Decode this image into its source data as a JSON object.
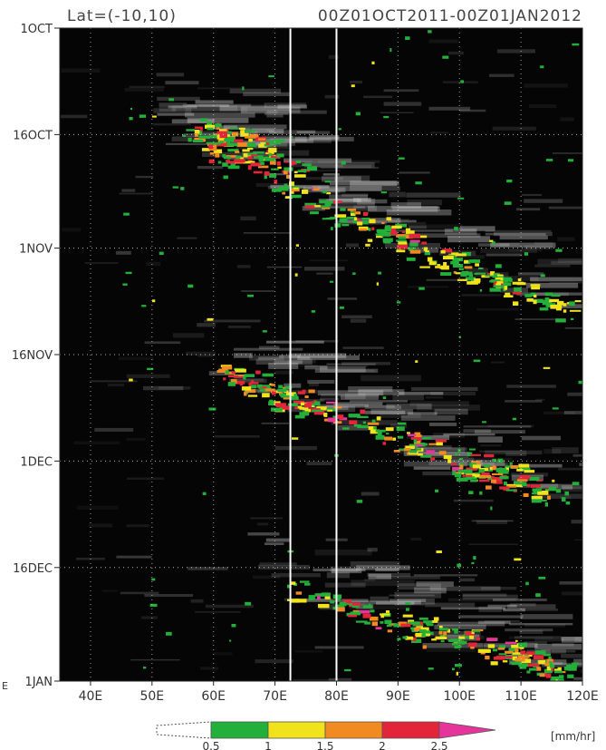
{
  "chart_data": {
    "type": "heatmap",
    "title_left": "Lat=(-10,10)",
    "title_right": "00Z01OCT2011-00Z01JAN2012",
    "x_axis": {
      "range": [
        35,
        120
      ],
      "ticks": [
        {
          "value": 40,
          "label": "40E"
        },
        {
          "value": 50,
          "label": "50E"
        },
        {
          "value": 60,
          "label": "60E"
        },
        {
          "value": 70,
          "label": "70E"
        },
        {
          "value": 80,
          "label": "80E"
        },
        {
          "value": 90,
          "label": "90E"
        },
        {
          "value": 100,
          "label": "100E"
        },
        {
          "value": 110,
          "label": "110E"
        },
        {
          "value": 120,
          "label": "120E"
        }
      ]
    },
    "y_axis": {
      "range_days_from_top": [
        0,
        92
      ],
      "ticks": [
        {
          "day": 0,
          "label": "1OCT"
        },
        {
          "day": 15,
          "label": "16OCT"
        },
        {
          "day": 31,
          "label": "1NOV"
        },
        {
          "day": 46,
          "label": "16NOV"
        },
        {
          "day": 61,
          "label": "1DEC"
        },
        {
          "day": 76,
          "label": "16DEC"
        },
        {
          "day": 92,
          "label": "1JAN"
        }
      ],
      "gridlines": "dotted"
    },
    "reference_lines_lon": [
      72.5,
      80
    ],
    "colorbar": {
      "unit": "[mm/hr]",
      "labels": [
        "0.5",
        "1",
        "1.5",
        "2",
        "2.5"
      ],
      "colors": [
        "#22b03a",
        "#f0e31b",
        "#f28a22",
        "#e3253a",
        "#e6359a"
      ],
      "below_color": "#ffffff"
    },
    "background_color": "#050505",
    "cloud_color": "#cfcfcf",
    "edge_label": "E",
    "rain_events": [
      {
        "lon1": 56,
        "lon2": 70,
        "day1": 14,
        "day2": 17,
        "peak": 2.4
      },
      {
        "lon1": 58,
        "lon2": 74,
        "day1": 17,
        "day2": 20,
        "peak": 1.8
      },
      {
        "lon1": 70,
        "lon2": 92,
        "day1": 22,
        "day2": 30,
        "peak": 2.5
      },
      {
        "lon1": 82,
        "lon2": 108,
        "day1": 27,
        "day2": 36,
        "peak": 2.2
      },
      {
        "lon1": 95,
        "lon2": 118,
        "day1": 32,
        "day2": 40,
        "peak": 1.4
      },
      {
        "lon1": 60,
        "lon2": 76,
        "day1": 48,
        "day2": 53,
        "peak": 2.2
      },
      {
        "lon1": 70,
        "lon2": 95,
        "day1": 52,
        "day2": 58,
        "peak": 2.8
      },
      {
        "lon1": 86,
        "lon2": 110,
        "day1": 57,
        "day2": 63,
        "peak": 2.6
      },
      {
        "lon1": 98,
        "lon2": 118,
        "day1": 62,
        "day2": 66,
        "peak": 2.0
      },
      {
        "lon1": 73,
        "lon2": 95,
        "day1": 79,
        "day2": 86,
        "peak": 2.9
      },
      {
        "lon1": 90,
        "lon2": 110,
        "day1": 83,
        "day2": 88,
        "peak": 2.6
      },
      {
        "lon1": 104,
        "lon2": 118,
        "day1": 87,
        "day2": 91,
        "peak": 2.2
      }
    ]
  }
}
